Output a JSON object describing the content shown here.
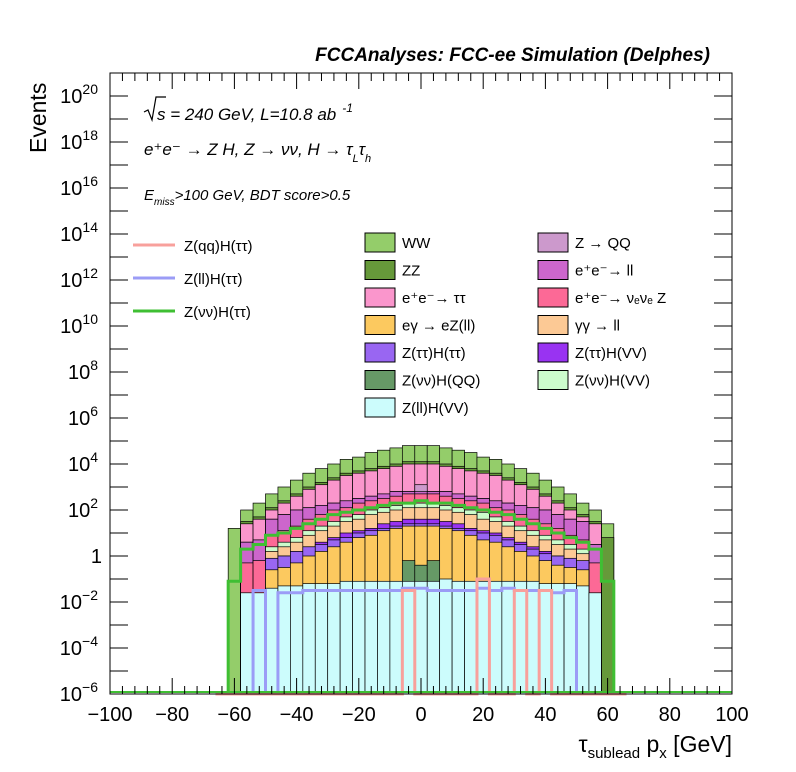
{
  "chart_data": {
    "type": "bar",
    "stacked": true,
    "title": "FCCAnalyses: FCC-ee Simulation (Delphes)",
    "ylabel": "Events",
    "xlabel": {
      "main": "τ",
      "sub": "sublead",
      "after": " p",
      "sub2": "x",
      "unit": " [GeV]"
    },
    "xlim": [
      -100,
      100
    ],
    "ylim": [
      1e-06,
      1e+21
    ],
    "ylog": true,
    "xticks": [
      "−100",
      "−80",
      "−60",
      "−40",
      "−20",
      "0",
      "20",
      "40",
      "60",
      "80",
      "100"
    ],
    "xtick_values": [
      -100,
      -80,
      -60,
      -40,
      -20,
      0,
      20,
      40,
      60,
      80,
      100
    ],
    "ytick_exponents": [
      -6,
      -4,
      -2,
      0,
      2,
      4,
      6,
      8,
      10,
      12,
      14,
      16,
      18,
      20
    ],
    "ytick_special": {
      "0": "1",
      "1": "10"
    },
    "annotations": {
      "line1": {
        "sqrt": "s",
        "rest": " = 240 GeV, L=10.8 ab",
        "sup": "-1"
      },
      "line2": "e⁺e⁻ → Z H, Z → νν, H → τ",
      "line2_sub1": "L",
      "line2_tau2": "τ",
      "line2_sub2": "h",
      "line3_pre": "E",
      "line3_sub": "miss",
      "line3_post": ">100 GeV, BDT score>0.5"
    },
    "signals": [
      {
        "name": "Z(qq)H(ττ)",
        "color": "#f8a09c"
      },
      {
        "name": "Z(ll)H(ττ)",
        "color": "#9b9cf6"
      },
      {
        "name": "Z(νν)H(ττ)",
        "color": "#3fbf33"
      }
    ],
    "backgrounds": [
      {
        "name": "WW",
        "color": "#94cd6a"
      },
      {
        "name": "ZZ",
        "color": "#66993a"
      },
      {
        "name": "e⁺e⁻→ ττ",
        "color": "#fa96cc"
      },
      {
        "name": "eγ → eZ(ll)",
        "color": "#fcc95f"
      },
      {
        "name": "Z(ττ)H(ττ)",
        "color": "#9966f2"
      },
      {
        "name": "Z(νν)H(QQ)",
        "color": "#669966"
      },
      {
        "name": "Z(ll)H(VV)",
        "color": "#ccfcfc"
      },
      {
        "name": "Z → QQ",
        "color": "#cc99cc"
      },
      {
        "name": "e⁺e⁻→ ll",
        "color": "#cc66cc"
      },
      {
        "name": "e⁺e⁻→ νₑνₑ Z",
        "color": "#fc6996"
      },
      {
        "name": "γγ → ll",
        "color": "#fcc995"
      },
      {
        "name": "Z(ττ)H(VV)",
        "color": "#9933f2"
      },
      {
        "name": "Z(νν)H(VV)",
        "color": "#ccfccc"
      }
    ],
    "bins": {
      "start": -66,
      "width": 4,
      "count": 33
    },
    "stack_log10": [
      {
        "name": "Z(ll)H(VV)",
        "values": [
          null,
          null,
          -1.6,
          -1.6,
          -1.4,
          -1.3,
          -1.3,
          -1.2,
          -1.2,
          -1.2,
          -1.1,
          -1.1,
          -1.1,
          -1.1,
          -1.1,
          -1.1,
          -1.1,
          -1.1,
          -1.0,
          -1.1,
          -1.1,
          -1.1,
          -1.1,
          -1.1,
          -1.1,
          -1.1,
          -1.2,
          -1.2,
          -1.2,
          -1.3,
          -1.6,
          null,
          null
        ]
      },
      {
        "name": "Z(νν)H(QQ)",
        "values": [
          null,
          null,
          null,
          null,
          null,
          null,
          null,
          null,
          null,
          null,
          null,
          null,
          null,
          null,
          null,
          -0.2,
          -0.4,
          -0.2,
          null,
          null,
          null,
          null,
          null,
          null,
          null,
          null,
          null,
          null,
          null,
          null,
          null,
          null,
          null
        ]
      },
      {
        "name": "eγ → eZ(ll)",
        "values": [
          null,
          null,
          null,
          null,
          -0.6,
          -0.5,
          -0.3,
          0.0,
          0.2,
          0.4,
          0.6,
          0.8,
          0.9,
          1.1,
          1.2,
          1.3,
          1.3,
          1.3,
          1.2,
          1.1,
          0.9,
          0.7,
          0.6,
          0.4,
          0.2,
          0.0,
          -0.2,
          -0.4,
          -0.5,
          -0.6,
          null,
          null,
          null
        ]
      },
      {
        "name": "Z(ττ)H(ττ)",
        "values": [
          null,
          null,
          null,
          null,
          -0.1,
          0.0,
          0.2,
          0.4,
          0.5,
          0.7,
          0.8,
          1.0,
          1.1,
          1.2,
          1.3,
          1.4,
          1.4,
          1.4,
          1.3,
          1.2,
          1.1,
          1.0,
          0.9,
          0.7,
          0.5,
          0.3,
          0.1,
          0.0,
          -0.1,
          -0.2,
          null,
          null,
          null
        ]
      },
      {
        "name": "Z(ττ)H(VV)",
        "values": [
          null,
          null,
          null,
          null,
          -0.2,
          0.0,
          0.2,
          0.4,
          0.6,
          0.8,
          1.0,
          1.1,
          1.2,
          1.4,
          1.5,
          1.6,
          1.6,
          1.6,
          1.5,
          1.4,
          1.2,
          1.1,
          1.0,
          0.8,
          0.6,
          0.4,
          0.2,
          0.0,
          -0.2,
          -0.3,
          null,
          null,
          null
        ]
      },
      {
        "name": "γγ → ll",
        "values": [
          null,
          null,
          null,
          null,
          0.2,
          0.4,
          0.6,
          0.9,
          1.1,
          1.3,
          1.5,
          1.6,
          1.8,
          1.9,
          2.0,
          2.1,
          2.1,
          2.1,
          2.0,
          1.9,
          1.8,
          1.6,
          1.5,
          1.3,
          1.1,
          0.9,
          0.7,
          0.5,
          0.3,
          0.1,
          null,
          null,
          null
        ]
      },
      {
        "name": "Z(νν)H(VV)",
        "values": [
          null,
          null,
          null,
          null,
          0.4,
          0.6,
          0.8,
          1.1,
          1.3,
          1.5,
          1.7,
          1.8,
          2.0,
          2.1,
          2.2,
          2.3,
          2.3,
          2.3,
          2.2,
          2.1,
          2.0,
          1.9,
          1.7,
          1.5,
          1.3,
          1.1,
          0.9,
          0.7,
          0.5,
          0.3,
          null,
          null,
          null
        ]
      },
      {
        "name": "e⁺e⁻→ νₑνₑ Z",
        "values": [
          null,
          null,
          -0.3,
          -0.2,
          0.9,
          1.1,
          1.3,
          1.6,
          1.8,
          2.0,
          2.1,
          2.3,
          2.4,
          2.5,
          2.6,
          2.7,
          2.7,
          2.7,
          2.6,
          2.5,
          2.4,
          2.3,
          2.1,
          2.0,
          1.8,
          1.6,
          1.4,
          1.2,
          0.9,
          0.7,
          -0.3,
          null,
          null
        ]
      },
      {
        "name": "e⁺e⁻→ ll",
        "values": [
          null,
          null,
          0.6,
          0.7,
          1.6,
          1.8,
          2.0,
          2.1,
          2.2,
          2.3,
          2.4,
          2.5,
          2.6,
          2.7,
          2.8,
          2.8,
          2.8,
          2.8,
          2.8,
          2.7,
          2.6,
          2.5,
          2.4,
          2.3,
          2.2,
          2.1,
          2.0,
          1.8,
          1.6,
          1.5,
          0.5,
          null,
          null
        ]
      },
      {
        "name": "Z → QQ",
        "values": [
          null,
          null,
          0.6,
          0.7,
          1.6,
          1.8,
          2.0,
          2.1,
          2.2,
          2.3,
          2.4,
          2.5,
          2.6,
          2.7,
          2.8,
          2.8,
          3.1,
          2.8,
          2.8,
          2.7,
          2.6,
          2.5,
          2.4,
          2.3,
          2.2,
          2.1,
          2.0,
          1.8,
          1.6,
          1.5,
          0.5,
          null,
          null
        ]
      },
      {
        "name": "e⁺e⁻→ ττ",
        "values": [
          null,
          null,
          1.4,
          1.6,
          2.0,
          2.3,
          2.6,
          2.9,
          3.1,
          3.3,
          3.5,
          3.6,
          3.7,
          3.8,
          3.9,
          4.0,
          4.0,
          4.0,
          3.9,
          3.8,
          3.7,
          3.6,
          3.5,
          3.3,
          3.1,
          2.9,
          2.6,
          2.3,
          2.0,
          1.7,
          1.4,
          null,
          null
        ]
      },
      {
        "name": "ZZ",
        "values": [
          null,
          null,
          1.5,
          1.7,
          2.1,
          2.4,
          2.7,
          3.0,
          3.2,
          3.4,
          3.6,
          3.7,
          3.8,
          3.9,
          4.0,
          4.1,
          4.1,
          4.1,
          4.0,
          3.9,
          3.8,
          3.7,
          3.6,
          3.4,
          3.2,
          3.0,
          2.7,
          2.4,
          2.1,
          1.8,
          1.5,
          0.8,
          null
        ]
      },
      {
        "name": "WW",
        "values": [
          null,
          1.2,
          2.0,
          2.3,
          2.7,
          3.0,
          3.3,
          3.6,
          3.8,
          4.0,
          4.2,
          4.3,
          4.5,
          4.6,
          4.7,
          4.8,
          4.8,
          4.8,
          4.7,
          4.6,
          4.5,
          4.3,
          4.2,
          4.0,
          3.8,
          3.6,
          3.3,
          3.0,
          2.7,
          2.3,
          2.0,
          1.4,
          null
        ]
      }
    ],
    "signal_log10": [
      {
        "name": "Z(νν)H(ττ)",
        "values": [
          -6,
          -1.1,
          0.3,
          0.5,
          0.9,
          1.0,
          1.2,
          1.4,
          1.6,
          1.8,
          1.9,
          2.0,
          2.1,
          2.2,
          2.3,
          2.3,
          2.4,
          2.3,
          2.3,
          2.2,
          2.1,
          2.0,
          1.9,
          1.8,
          1.6,
          1.4,
          1.2,
          1.0,
          0.8,
          0.6,
          0.3,
          -1.1,
          -6
        ]
      },
      {
        "name": "Z(ll)H(ττ)",
        "values": [
          -6,
          -6,
          -6,
          -1.5,
          -6,
          -1.6,
          -1.6,
          -1.5,
          -1.5,
          -1.5,
          -1.5,
          -1.5,
          -1.5,
          -1.5,
          -1.5,
          -1.4,
          -1.4,
          -1.5,
          -1.5,
          -1.5,
          -1.5,
          -1.4,
          -1.5,
          -1.4,
          -1.5,
          -1.5,
          -1.5,
          -1.6,
          -1.5,
          -6,
          -6,
          -6,
          -6
        ]
      },
      {
        "name": "Z(qq)H(ττ)",
        "values": [
          -6,
          -6,
          -6,
          -6,
          -6,
          -6,
          -6,
          -6,
          -6,
          -6,
          -6,
          -6,
          -6,
          -6,
          -6,
          -1.5,
          -6,
          -6,
          -6,
          -6,
          -6,
          -1.0,
          -6,
          -6,
          -1.5,
          -6,
          -1.5,
          -6,
          -6,
          -6,
          -6,
          -6,
          -6
        ]
      }
    ]
  }
}
